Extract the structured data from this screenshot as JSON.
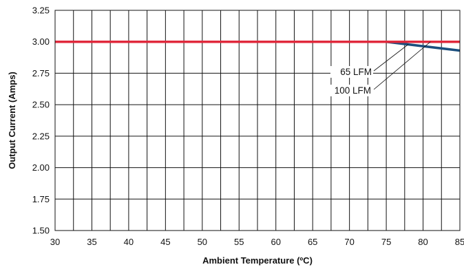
{
  "chart_data": {
    "type": "line",
    "xlabel": "Ambient Temperature (ºC)",
    "ylabel": "Output Current (Amps)",
    "xlim": [
      30,
      85
    ],
    "ylim": [
      1.5,
      3.25
    ],
    "x_ticks": [
      "30",
      "35",
      "40",
      "45",
      "50",
      "55",
      "60",
      "65",
      "70",
      "75",
      "80",
      "85"
    ],
    "y_ticks": [
      "1.50",
      "1.75",
      "2.00",
      "2.25",
      "2.50",
      "2.75",
      "3.00",
      "3.25"
    ],
    "grid": true,
    "series": [
      {
        "name": "65 LFM",
        "color": "#1b4f7e",
        "x": [
          30,
          75,
          85
        ],
        "y": [
          3.0,
          3.0,
          2.93
        ]
      },
      {
        "name": "100 LFM",
        "color": "#e0293c",
        "x": [
          30,
          85
        ],
        "y": [
          3.0,
          3.0
        ]
      }
    ],
    "annotations": [
      {
        "text": "65 LFM",
        "target_series": "65 LFM",
        "target_point": [
          78,
          2.98
        ]
      },
      {
        "text": "100 LFM",
        "target_series": "100 LFM",
        "target_point": [
          81,
          3.0
        ]
      }
    ]
  }
}
